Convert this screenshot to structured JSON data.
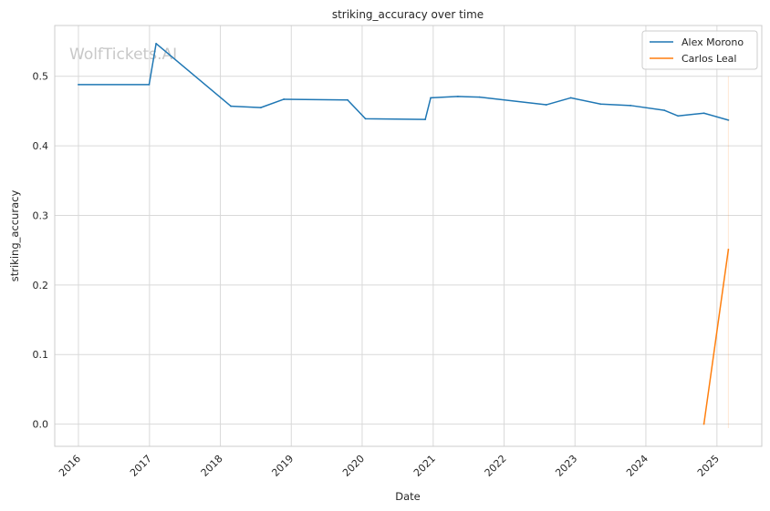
{
  "chart_data": {
    "type": "line",
    "title": "striking_accuracy over time",
    "xlabel": "Date",
    "ylabel": "striking_accuracy",
    "watermark": "WolfTickets.AI",
    "x_ticks": [
      "2016",
      "2017",
      "2018",
      "2019",
      "2020",
      "2021",
      "2022",
      "2023",
      "2024",
      "2025"
    ],
    "y_ticks": [
      "0.0",
      "0.1",
      "0.2",
      "0.3",
      "0.4",
      "0.5"
    ],
    "xlim": [
      "2015-09-01",
      "2025-08-20"
    ],
    "ylim": [
      -0.032,
      0.573
    ],
    "grid": true,
    "legend_position": "top-right",
    "series": [
      {
        "name": "Alex Morono",
        "color": "#1f77b4",
        "points": [
          {
            "x": "2016-01-01",
            "y": 0.488
          },
          {
            "x": "2016-12-30",
            "y": 0.488
          },
          {
            "x": "2017-02-04",
            "y": 0.547
          },
          {
            "x": "2018-02-24",
            "y": 0.457
          },
          {
            "x": "2018-07-28",
            "y": 0.455
          },
          {
            "x": "2018-11-24",
            "y": 0.467
          },
          {
            "x": "2019-10-18",
            "y": 0.466
          },
          {
            "x": "2020-01-18",
            "y": 0.439
          },
          {
            "x": "2020-11-21",
            "y": 0.438
          },
          {
            "x": "2020-12-19",
            "y": 0.469
          },
          {
            "x": "2021-05-08",
            "y": 0.471
          },
          {
            "x": "2021-08-28",
            "y": 0.47
          },
          {
            "x": "2022-08-06",
            "y": 0.459
          },
          {
            "x": "2022-12-10",
            "y": 0.469
          },
          {
            "x": "2023-05-13",
            "y": 0.46
          },
          {
            "x": "2023-10-14",
            "y": 0.458
          },
          {
            "x": "2024-04-06",
            "y": 0.451
          },
          {
            "x": "2024-06-15",
            "y": 0.443
          },
          {
            "x": "2024-10-26",
            "y": 0.447
          },
          {
            "x": "2025-03-01",
            "y": 0.437
          }
        ]
      },
      {
        "name": "Carlos Leal",
        "color": "#ff7f0e",
        "points": [
          {
            "x": "2024-10-26",
            "y": 0.0
          },
          {
            "x": "2025-03-01",
            "y": 0.251
          }
        ]
      }
    ]
  }
}
